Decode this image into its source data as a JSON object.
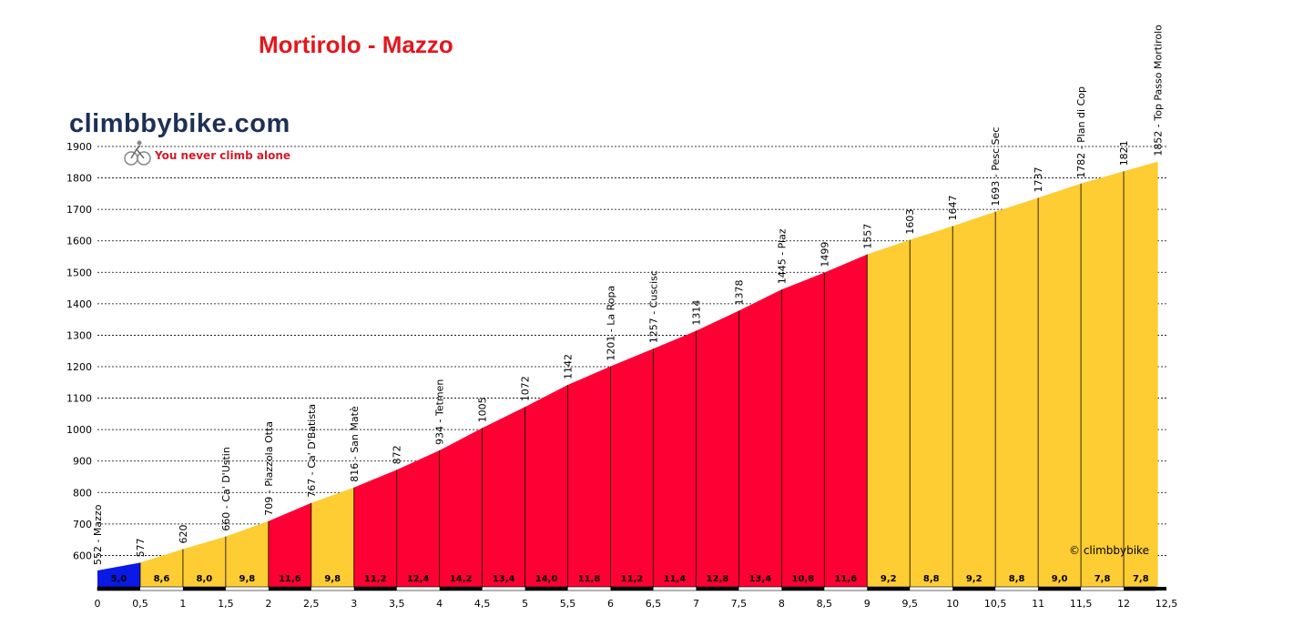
{
  "header": {
    "title": "Mortirolo - Mazzo"
  },
  "logo": {
    "name": "climbbybike.com",
    "tagline": "You never climb alone"
  },
  "copyright": "© climbbybike",
  "colors": {
    "title": "#e4161d",
    "logo_text": "#1e2f57",
    "tagline": "#d31b29",
    "easy": "#0b19e5",
    "moderate": "#fecc33",
    "hard": "#fe0033"
  },
  "chart_data": {
    "type": "area",
    "title": "Mortirolo - Mazzo",
    "xlabel": "",
    "ylabel": "",
    "xlim": [
      0,
      12.5
    ],
    "ylim": [
      500,
      1900
    ],
    "grid": true,
    "x_ticks": [
      "0",
      "0,5",
      "1",
      "1,5",
      "2",
      "2,5",
      "3",
      "3,5",
      "4",
      "4,5",
      "5",
      "5,5",
      "6",
      "6,5",
      "7",
      "7,5",
      "8",
      "8,5",
      "9",
      "9,5",
      "10",
      "10,5",
      "11",
      "11,5",
      "12",
      "12,5"
    ],
    "y_ticks": [
      "600",
      "700",
      "800",
      "900",
      "1000",
      "1100",
      "1200",
      "1300",
      "1400",
      "1500",
      "1600",
      "1700",
      "1800",
      "1900"
    ],
    "profile": [
      {
        "x": 0,
        "y": 552,
        "label": "552 - Mazzo"
      },
      {
        "x": 0.5,
        "y": 577,
        "label": "577"
      },
      {
        "x": 1,
        "y": 620,
        "label": "620"
      },
      {
        "x": 1.5,
        "y": 660,
        "label": "660 - Ca' D'Ustin"
      },
      {
        "x": 2,
        "y": 709,
        "label": "709 - Piazzola Otta"
      },
      {
        "x": 2.5,
        "y": 767,
        "label": "767 - Ca' D'Batista"
      },
      {
        "x": 3,
        "y": 816,
        "label": "816 - San Matè"
      },
      {
        "x": 3.5,
        "y": 872,
        "label": "872"
      },
      {
        "x": 4,
        "y": 934,
        "label": "934 - Tetmen"
      },
      {
        "x": 4.5,
        "y": 1005,
        "label": "1005"
      },
      {
        "x": 5,
        "y": 1072,
        "label": "1072"
      },
      {
        "x": 5.5,
        "y": 1142,
        "label": "1142"
      },
      {
        "x": 6,
        "y": 1201,
        "label": "1201 - La Ropa"
      },
      {
        "x": 6.5,
        "y": 1257,
        "label": "1257 - Cuscisc"
      },
      {
        "x": 7,
        "y": 1314,
        "label": "1314"
      },
      {
        "x": 7.5,
        "y": 1378,
        "label": "1378"
      },
      {
        "x": 8,
        "y": 1445,
        "label": "1445 - Piaz"
      },
      {
        "x": 8.5,
        "y": 1499,
        "label": "1499"
      },
      {
        "x": 9,
        "y": 1557,
        "label": "1557"
      },
      {
        "x": 9.5,
        "y": 1603,
        "label": "1603"
      },
      {
        "x": 10,
        "y": 1647,
        "label": "1647"
      },
      {
        "x": 10.5,
        "y": 1693,
        "label": "1693 - Pesc Sec"
      },
      {
        "x": 11,
        "y": 1737,
        "label": "1737"
      },
      {
        "x": 11.5,
        "y": 1782,
        "label": "1782 - Plan di Cop"
      },
      {
        "x": 12,
        "y": 1821,
        "label": "1821"
      },
      {
        "x": 12.4,
        "y": 1852,
        "label": "1852 - Top Passo Mortirolo"
      }
    ],
    "segments": [
      {
        "grade": "5,0",
        "level": "easy"
      },
      {
        "grade": "8,6",
        "level": "moderate"
      },
      {
        "grade": "8,0",
        "level": "moderate"
      },
      {
        "grade": "9,8",
        "level": "moderate"
      },
      {
        "grade": "11,6",
        "level": "hard"
      },
      {
        "grade": "9,8",
        "level": "moderate"
      },
      {
        "grade": "11,2",
        "level": "hard"
      },
      {
        "grade": "12,4",
        "level": "hard"
      },
      {
        "grade": "14,2",
        "level": "hard"
      },
      {
        "grade": "13,4",
        "level": "hard"
      },
      {
        "grade": "14,0",
        "level": "hard"
      },
      {
        "grade": "11,8",
        "level": "hard"
      },
      {
        "grade": "11,2",
        "level": "hard"
      },
      {
        "grade": "11,4",
        "level": "hard"
      },
      {
        "grade": "12,8",
        "level": "hard"
      },
      {
        "grade": "13,4",
        "level": "hard"
      },
      {
        "grade": "10,8",
        "level": "hard"
      },
      {
        "grade": "11,6",
        "level": "hard"
      },
      {
        "grade": "9,2",
        "level": "moderate"
      },
      {
        "grade": "8,8",
        "level": "moderate"
      },
      {
        "grade": "9,2",
        "level": "moderate"
      },
      {
        "grade": "8,8",
        "level": "moderate"
      },
      {
        "grade": "9,0",
        "level": "moderate"
      },
      {
        "grade": "7,8",
        "level": "moderate"
      },
      {
        "grade": "7,8",
        "level": "moderate"
      }
    ]
  }
}
